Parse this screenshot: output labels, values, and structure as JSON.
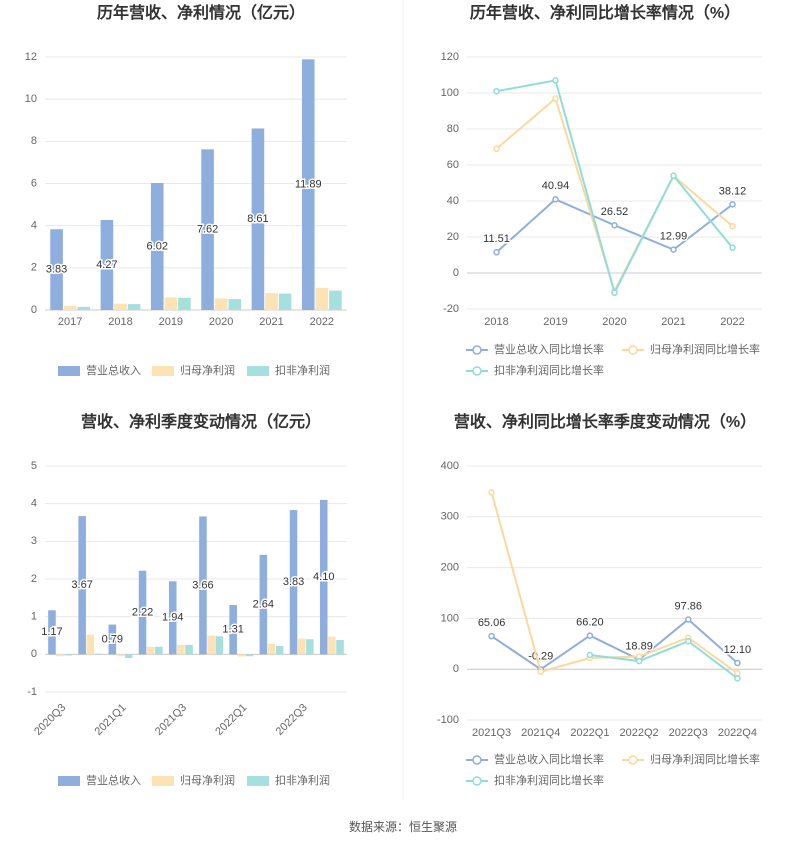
{
  "chart_data": [
    {
      "type": "bar",
      "title": "历年营收、净利情况（亿元）",
      "categories": [
        "2017",
        "2018",
        "2019",
        "2020",
        "2021",
        "2022"
      ],
      "series": [
        {
          "name": "营业总收入",
          "color": "#8eaedd",
          "values": [
            3.83,
            4.27,
            6.02,
            7.62,
            8.61,
            11.89
          ],
          "value_labels": [
            "3.83",
            "4.27",
            "6.02",
            "7.62",
            "8.61",
            "11.89"
          ]
        },
        {
          "name": "归母净利润",
          "color": "#fde2b4",
          "values": [
            0.2,
            0.3,
            0.6,
            0.55,
            0.8,
            1.05
          ]
        },
        {
          "name": "扣非净利润",
          "color": "#a5e0df",
          "values": [
            0.15,
            0.28,
            0.58,
            0.52,
            0.78,
            0.92
          ]
        }
      ],
      "ylim": [
        0,
        12
      ],
      "yticks": [
        0,
        2,
        4,
        6,
        8,
        10,
        12
      ],
      "grid": true
    },
    {
      "type": "line",
      "title": "历年营收、净利同比增长率情况（%）",
      "categories": [
        "2018",
        "2019",
        "2020",
        "2021",
        "2022"
      ],
      "series": [
        {
          "name": "营业总收入同比增长率",
          "color": "#8eaedd",
          "values": [
            11.51,
            40.94,
            26.52,
            12.99,
            38.12
          ],
          "value_labels": [
            "11.51",
            "40.94",
            "26.52",
            "12.99",
            "38.12"
          ]
        },
        {
          "name": "归母净利润同比增长率",
          "color": "#fdd89b",
          "values": [
            69,
            97,
            -10,
            54,
            26
          ]
        },
        {
          "name": "扣非净利润同比增长率",
          "color": "#8fdcdb",
          "values": [
            101,
            107,
            -11,
            54,
            14
          ]
        }
      ],
      "ylim": [
        -20,
        120
      ],
      "yticks": [
        -20,
        0,
        20,
        40,
        60,
        80,
        100,
        120
      ],
      "grid": true
    },
    {
      "type": "bar",
      "title": "营收、净利季度变动情况（亿元）",
      "categories": [
        "2020Q3",
        null,
        "2021Q1",
        null,
        "2021Q3",
        null,
        "2022Q1",
        null,
        "2022Q3",
        null
      ],
      "series": [
        {
          "name": "营业总收入",
          "color": "#8eaedd",
          "values": [
            1.17,
            3.67,
            0.79,
            2.22,
            1.94,
            3.66,
            1.31,
            2.64,
            3.83,
            4.1
          ],
          "value_labels": [
            "1.17",
            "3.67",
            "0.79",
            "2.22",
            "1.94",
            "3.66",
            "1.31",
            "2.64",
            "3.83",
            "4.10"
          ]
        },
        {
          "name": "归母净利润",
          "color": "#fde2b4",
          "values": [
            -0.05,
            0.52,
            -0.05,
            0.2,
            0.25,
            0.5,
            -0.06,
            0.28,
            0.42,
            0.47
          ]
        },
        {
          "name": "扣非净利润",
          "color": "#a5e0df",
          "values": [
            -0.03,
            0.02,
            -0.1,
            0.2,
            0.25,
            0.48,
            -0.05,
            0.22,
            0.4,
            0.38
          ]
        }
      ],
      "ylim": [
        -1,
        5
      ],
      "yticks": [
        -1,
        0,
        1,
        2,
        3,
        4,
        5
      ],
      "grid": true
    },
    {
      "type": "line",
      "title": "营收、净利同比增长率季度变动情况（%）",
      "categories": [
        "2021Q3",
        "2021Q4",
        "2022Q1",
        "2022Q2",
        "2022Q3",
        "2022Q4"
      ],
      "series": [
        {
          "name": "营业总收入同比增长率",
          "color": "#8eaedd",
          "values": [
            65.06,
            -0.29,
            66.2,
            18.89,
            97.86,
            12.1
          ],
          "value_labels": [
            "65.06",
            "-0.29",
            "66.20",
            "18.89",
            "97.86",
            "12.10"
          ]
        },
        {
          "name": "归母净利润同比增长率",
          "color": "#fdd89b",
          "values": [
            348,
            -5,
            22,
            25,
            62,
            -8
          ]
        },
        {
          "name": "扣非净利润同比增长率",
          "color": "#8fdcdb",
          "values": [
            null,
            null,
            28,
            16,
            55,
            -18
          ]
        }
      ],
      "ylim": [
        -100,
        400
      ],
      "yticks": [
        -100,
        0,
        100,
        200,
        300,
        400
      ],
      "grid": true
    }
  ],
  "footer": "数据来源：恒生聚源"
}
